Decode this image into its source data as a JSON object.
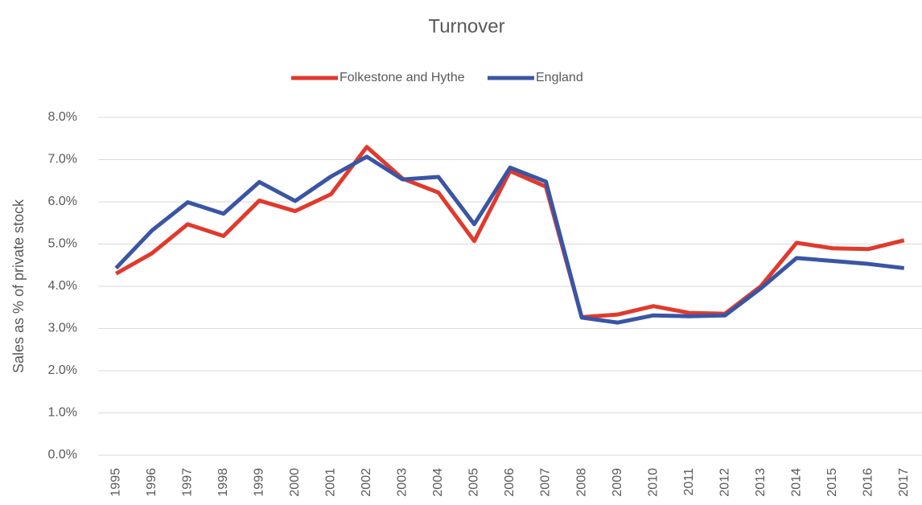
{
  "chart_data": {
    "type": "line",
    "title": "Turnover",
    "y_label": "Sales as % of private stock",
    "categories": [
      "1995",
      "1996",
      "1997",
      "1998",
      "1999",
      "2000",
      "2001",
      "2002",
      "2003",
      "2004",
      "2005",
      "2006",
      "2007",
      "2008",
      "2009",
      "2010",
      "2011",
      "2012",
      "2013",
      "2014",
      "2015",
      "2016",
      "2017"
    ],
    "series": [
      {
        "name": "Folkestone and Hythe",
        "color": "#e03a2c",
        "values": [
          4.3,
          4.78,
          5.47,
          5.19,
          6.03,
          5.78,
          6.18,
          7.3,
          6.55,
          6.22,
          5.07,
          6.73,
          6.36,
          3.27,
          3.33,
          3.53,
          3.37,
          3.35,
          4.0,
          5.03,
          4.9,
          4.88,
          5.09
        ]
      },
      {
        "name": "England",
        "color": "#3a55a4",
        "values": [
          4.43,
          5.32,
          5.99,
          5.72,
          6.47,
          6.02,
          6.6,
          7.07,
          6.53,
          6.59,
          5.47,
          6.81,
          6.48,
          3.26,
          3.14,
          3.31,
          3.29,
          3.31,
          3.95,
          4.67,
          4.6,
          4.53,
          4.43
        ]
      }
    ],
    "ylim": [
      0,
      8
    ],
    "yticks": [
      {
        "value": 0,
        "label": "0.0%"
      },
      {
        "value": 1,
        "label": "1.0%"
      },
      {
        "value": 2,
        "label": "2.0%"
      },
      {
        "value": 3,
        "label": "3.0%"
      },
      {
        "value": 4,
        "label": "4.0%"
      },
      {
        "value": 5,
        "label": "5.0%"
      },
      {
        "value": 6,
        "label": "6.0%"
      },
      {
        "value": 7,
        "label": "7.0%"
      },
      {
        "value": 8,
        "label": "8.0%"
      }
    ],
    "grid": true,
    "legend": "top"
  }
}
